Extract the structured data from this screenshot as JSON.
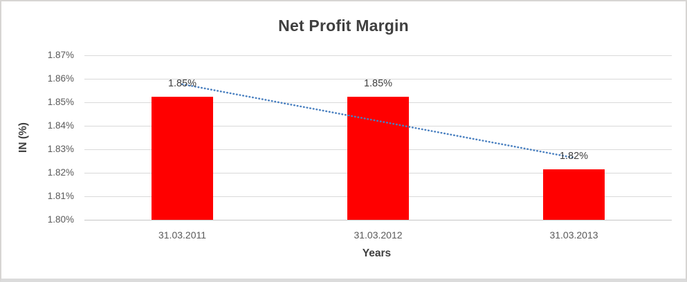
{
  "window": {
    "background": "#ffffff",
    "border_color": "#d7d5d3"
  },
  "chart_data": {
    "type": "bar",
    "title": "Net Profit Margin",
    "xlabel": "Years",
    "ylabel": "IN (%)",
    "categories": [
      "31.03.2011",
      "31.03.2012",
      "31.03.2013"
    ],
    "values": [
      1.8525,
      1.8525,
      1.8215
    ],
    "data_labels": [
      "1.85%",
      "1.85%",
      "1.82%"
    ],
    "ylim": [
      1.8,
      1.87
    ],
    "ytick_step": 0.01,
    "ytick_labels": [
      "1.80%",
      "1.81%",
      "1.82%",
      "1.83%",
      "1.84%",
      "1.85%",
      "1.86%",
      "1.87%"
    ],
    "grid": true,
    "legend": "none",
    "bar_color": "#ff0000",
    "gridline_color": "#d9d9d9",
    "axis_line_color": "#c6c6c6",
    "text_color": "#595959",
    "title_color": "#3f3f3f",
    "trendline": {
      "style": "dotted",
      "color": "#4a80c0",
      "start_value": 1.8577,
      "end_value": 1.8264
    }
  }
}
